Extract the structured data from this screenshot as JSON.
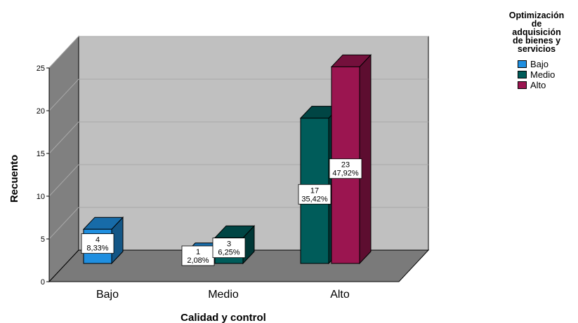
{
  "chart_data": {
    "type": "bar",
    "title": "",
    "xlabel": "Calidad y control",
    "ylabel": "Recuento",
    "ylim": [
      0,
      25
    ],
    "yticks": [
      0,
      5,
      10,
      15,
      20,
      25
    ],
    "categories": [
      "Bajo",
      "Medio",
      "Alto"
    ],
    "legend_title": [
      "Optimización",
      "de",
      "adquisición",
      "de bienes y",
      "servicios"
    ],
    "legend_position": "top-right",
    "grid": true,
    "style": "3d",
    "series": [
      {
        "name": "Bajo",
        "color": "#1f8fe0",
        "values": [
          4,
          1,
          null
        ],
        "labels": [
          [
            "4",
            "8,33%"
          ],
          [
            "1",
            "2,08%"
          ],
          null
        ]
      },
      {
        "name": "Medio",
        "color": "#005c5a",
        "values": [
          null,
          3,
          17
        ],
        "labels": [
          null,
          [
            "3",
            "6,25%"
          ],
          [
            "17",
            "35,42%"
          ]
        ]
      },
      {
        "name": "Alto",
        "color": "#9b1550",
        "values": [
          null,
          null,
          23
        ],
        "labels": [
          null,
          null,
          [
            "23",
            "47,92%"
          ]
        ]
      }
    ]
  }
}
